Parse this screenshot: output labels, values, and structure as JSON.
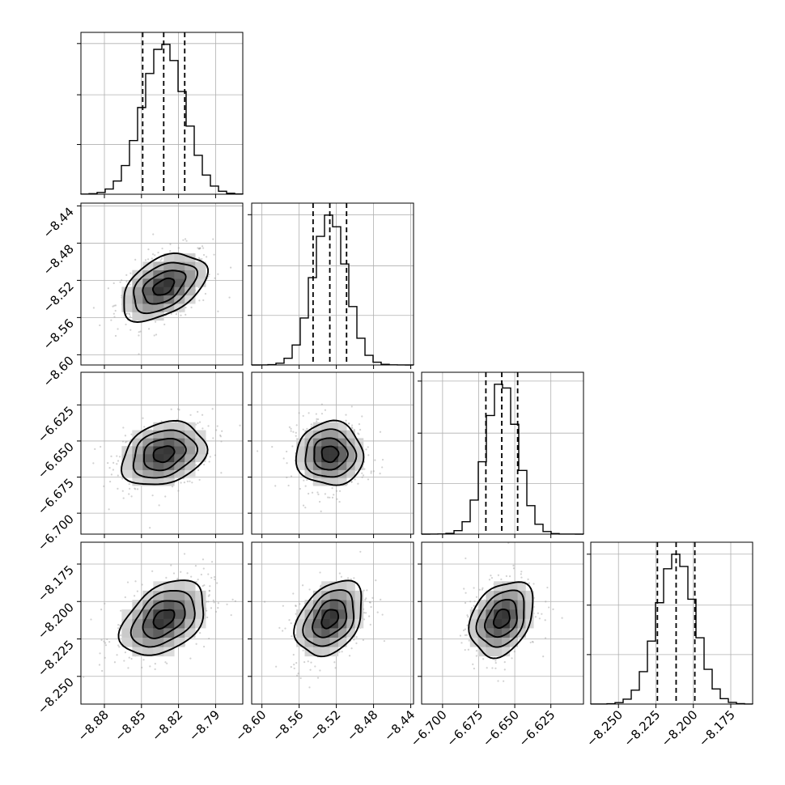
{
  "chart_data": {
    "type": "corner",
    "n_params": 4,
    "params": [
      {
        "mean": -8.832,
        "sd": 0.017,
        "range": [
          -8.899,
          -8.768
        ],
        "ticks": [
          -8.88,
          -8.85,
          -8.82,
          -8.79
        ],
        "tick_labels": [
          "−8.88",
          "−8.85",
          "−8.82",
          "−8.79"
        ],
        "quantiles": [
          -8.849,
          -8.832,
          -8.815
        ]
      },
      {
        "mean": -8.527,
        "sd": 0.018,
        "range": [
          -8.611,
          -8.437
        ],
        "ticks": [
          -8.6,
          -8.56,
          -8.52,
          -8.48,
          -8.44
        ],
        "tick_labels": [
          "−8.60",
          "−8.56",
          "−8.52",
          "−8.48",
          "−8.44"
        ],
        "quantiles": [
          -8.545,
          -8.527,
          -8.509
        ]
      },
      {
        "mean": -6.659,
        "sd": 0.011,
        "range": [
          -6.7145,
          -6.6024
        ],
        "ticks": [
          -6.7,
          -6.675,
          -6.65,
          -6.625
        ],
        "tick_labels": [
          "−6.700",
          "−6.675",
          "−6.650",
          "−6.625"
        ],
        "quantiles": [
          -6.67,
          -6.659,
          -6.648
        ]
      },
      {
        "mean": -8.2115,
        "sd": 0.0125,
        "range": [
          -8.2685,
          -8.1604
        ],
        "ticks": [
          -8.25,
          -8.225,
          -8.2,
          -8.175
        ],
        "tick_labels": [
          "−8.250",
          "−8.225",
          "−8.200",
          "−8.175"
        ],
        "quantiles": [
          -8.224,
          -8.2115,
          -8.199
        ]
      }
    ],
    "correlations": [
      [
        1,
        2,
        0.45
      ],
      [
        1,
        3,
        0.25
      ],
      [
        1,
        4,
        0.4
      ],
      [
        2,
        3,
        0.0
      ],
      [
        2,
        4,
        0.35
      ],
      [
        3,
        4,
        0.3
      ]
    ],
    "histogram_bins": 20,
    "contour_levels_sigma": [
      0.5,
      1.0,
      1.5,
      2.0
    ],
    "grid": true,
    "colors": {
      "line": "#000000",
      "grid": "#b0b0b0",
      "points": "#9a9a9a"
    }
  }
}
